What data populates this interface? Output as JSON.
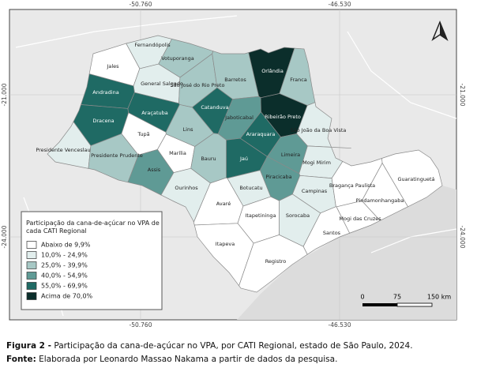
{
  "coords": {
    "top": [
      "-50.760",
      "-46.530"
    ],
    "bottom": [
      "-50.760",
      "-46.530"
    ],
    "left": [
      "-21.000",
      "-24.000"
    ],
    "right": [
      "-21.000",
      "-24.000"
    ]
  },
  "legend": {
    "title": "Participação da cana-de-açúcar no VPA de cada CATI Regional",
    "items": [
      {
        "label": "Abaixo de 9,9%",
        "color": "#ffffff"
      },
      {
        "label": "10,0% - 24,9%",
        "color": "#e2eeed"
      },
      {
        "label": "25,0% - 39,9%",
        "color": "#a7c8c5"
      },
      {
        "label": "40,0% - 54,9%",
        "color": "#5f9a95"
      },
      {
        "label": "55,0% - 69,9%",
        "color": "#1f6a64"
      },
      {
        "label": "Acima de 70,0%",
        "color": "#0b2e2b"
      }
    ]
  },
  "scale": [
    "0",
    "75",
    "150 km"
  ],
  "regions": [
    {
      "name": "Fernandópolis",
      "class": 1
    },
    {
      "name": "Jales",
      "class": 0
    },
    {
      "name": "Votuporanga",
      "class": 2
    },
    {
      "name": "General Salgado",
      "class": 1
    },
    {
      "name": "São José do Rio Preto",
      "class": 2
    },
    {
      "name": "Barretos",
      "class": 2
    },
    {
      "name": "Orlândia",
      "class": 5
    },
    {
      "name": "Franca",
      "class": 2
    },
    {
      "name": "Andradina",
      "class": 4
    },
    {
      "name": "Catanduva",
      "class": 4
    },
    {
      "name": "Ribeirão Preto",
      "class": 5
    },
    {
      "name": "Dracena",
      "class": 4
    },
    {
      "name": "Araçatuba",
      "class": 4
    },
    {
      "name": "Jaboticabal",
      "class": 3
    },
    {
      "name": "São João da Boa Vista",
      "class": 1
    },
    {
      "name": "Lins",
      "class": 2
    },
    {
      "name": "Tupã",
      "class": 0
    },
    {
      "name": "Araraquara",
      "class": 4
    },
    {
      "name": "Presidente Venceslau",
      "class": 1
    },
    {
      "name": "Presidente Prudente",
      "class": 2
    },
    {
      "name": "Marília",
      "class": 0
    },
    {
      "name": "Bauru",
      "class": 2
    },
    {
      "name": "Jaú",
      "class": 4
    },
    {
      "name": "Limeira",
      "class": 3
    },
    {
      "name": "Mogi Mirim",
      "class": 1
    },
    {
      "name": "Assis",
      "class": 3
    },
    {
      "name": "Piracicaba",
      "class": 3
    },
    {
      "name": "Ourinhos",
      "class": 1
    },
    {
      "name": "Botucatu",
      "class": 1
    },
    {
      "name": "Campinas",
      "class": 1
    },
    {
      "name": "Bragança Paulista",
      "class": 0
    },
    {
      "name": "Guaratinguetá",
      "class": 0
    },
    {
      "name": "Pindamonhangaba",
      "class": 0
    },
    {
      "name": "Avaré",
      "class": 0
    },
    {
      "name": "Itapetininga",
      "class": 0
    },
    {
      "name": "Sorocaba",
      "class": 1
    },
    {
      "name": "Mogi das Cruzes",
      "class": 0
    },
    {
      "name": "Santos",
      "class": 0
    },
    {
      "name": "Itapeva",
      "class": 0
    },
    {
      "name": "Registro",
      "class": 0
    }
  ],
  "caption": {
    "figure_label": "Figura 2 -",
    "figure_text": "Participação da cana-de-açúcar no VPA, por CATI Regional, estado de São Paulo, 2024.",
    "source_label": "Fonte:",
    "source_text": "Elaborada por Leonardo Massao Nakama a partir de dados da pesquisa."
  }
}
